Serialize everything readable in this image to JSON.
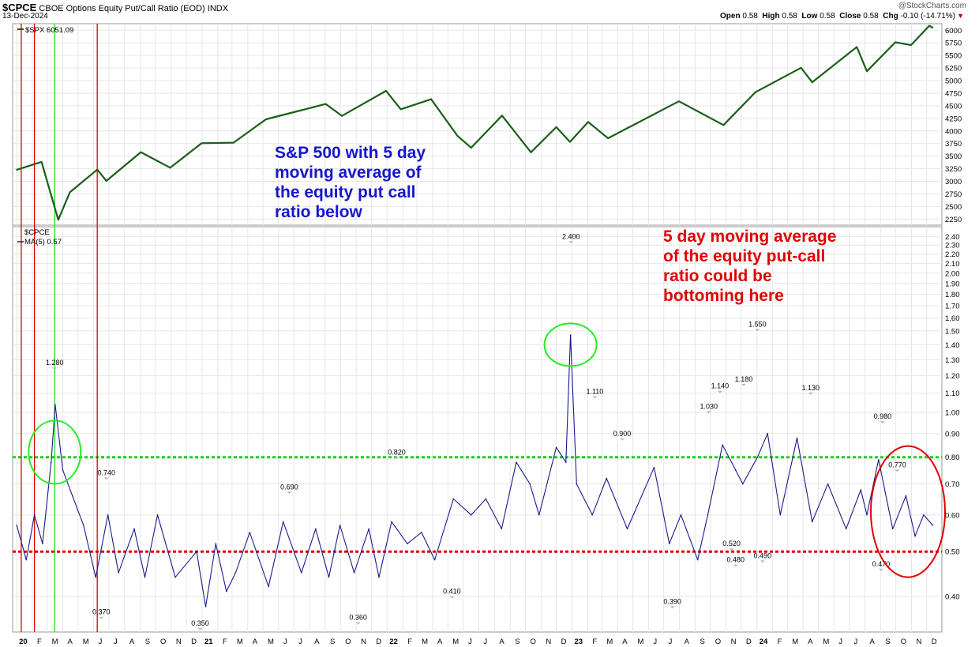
{
  "header": {
    "symbol": "$CPCE",
    "description": "CBOE Options Equity Put/Call Ratio (EOD)",
    "exchange": "INDX",
    "date": "13-Dec-2024",
    "open_label": "Open",
    "open": "0.58",
    "high_label": "High",
    "high": "0.58",
    "low_label": "Low",
    "low": "0.58",
    "close_label": "Close",
    "close": "0.58",
    "chg_label": "Chg",
    "chg": "-0.10 (-14.71%)",
    "watermark": "@StockCharts.com"
  },
  "annotations": {
    "blue_note": [
      "S&P 500 with 5 day",
      "moving average of",
      "the equity put call",
      "ratio below"
    ],
    "red_note": [
      "5 day moving average",
      "of the equity put-call",
      "ratio could be",
      "bottoming here"
    ]
  },
  "colors": {
    "spx_line": "#1a5e1a",
    "ma_line": "#1a1a8c",
    "red": "#e00000",
    "green": "#22dd22",
    "blue_text": "#1616cc",
    "grid": "#e6e6e6"
  },
  "chart_data": [
    {
      "type": "line",
      "legend": "$SPX 6051.09",
      "y_ticks": [
        2250,
        2500,
        2750,
        3000,
        3250,
        3500,
        3750,
        4000,
        4250,
        4500,
        4750,
        5000,
        5250,
        5500,
        5750,
        6000
      ],
      "ylim": [
        2130,
        6130
      ],
      "grid": true,
      "series": [
        {
          "name": "$SPX",
          "x": [
            "2020-01-01",
            "2020-02-19",
            "2020-03-23",
            "2020-04-15",
            "2020-06-08",
            "2020-06-26",
            "2020-09-02",
            "2020-10-30",
            "2020-12-31",
            "2021-03-04",
            "2021-05-07",
            "2021-09-02",
            "2021-10-04",
            "2021-12-30",
            "2022-01-28",
            "2022-03-29",
            "2022-05-20",
            "2022-06-16",
            "2022-08-16",
            "2022-10-12",
            "2022-12-01",
            "2022-12-28",
            "2023-02-02",
            "2023-03-13",
            "2023-07-31",
            "2023-10-27",
            "2023-12-29",
            "2024-03-28",
            "2024-04-19",
            "2024-07-16",
            "2024-08-05",
            "2024-09-30",
            "2024-10-31",
            "2024-12-06",
            "2024-12-13"
          ],
          "values": [
            3230,
            3386,
            2237,
            2783,
            3232,
            3009,
            3580,
            3270,
            3756,
            3768,
            4232,
            4537,
            4300,
            4796,
            4431,
            4631,
            3901,
            3667,
            4305,
            3577,
            4076,
            3783,
            4179,
            3855,
            4589,
            4117,
            4770,
            5254,
            4967,
            5667,
            5186,
            5762,
            5705,
            6090,
            6051
          ]
        }
      ]
    },
    {
      "type": "line",
      "legend": [
        "$CPCE",
        "MA(5) 0.57"
      ],
      "y_ticks": [
        0.4,
        0.5,
        0.6,
        0.7,
        0.8,
        0.9,
        1.0,
        1.1,
        1.2,
        1.3,
        1.4,
        1.5,
        1.6,
        1.7,
        1.8,
        1.9,
        2.0,
        2.1,
        2.2,
        2.3,
        2.4
      ],
      "scale": "log",
      "ylim": [
        0.335,
        2.52
      ],
      "grid": true,
      "reference_lines": [
        {
          "value": 0.8,
          "color": "#22cc22",
          "style": "dotted"
        },
        {
          "value": 0.5,
          "color": "#e00000",
          "style": "dotted"
        }
      ],
      "series": [
        {
          "name": "MA(5)",
          "x": [
            "2020-01-01",
            "2020-01-20",
            "2020-02-05",
            "2020-02-21",
            "2020-03-09",
            "2020-03-17",
            "2020-04-01",
            "2020-04-20",
            "2020-05-12",
            "2020-06-05",
            "2020-06-29",
            "2020-07-20",
            "2020-08-20",
            "2020-09-10",
            "2020-10-05",
            "2020-11-09",
            "2020-12-21",
            "2021-01-08",
            "2021-01-28",
            "2021-02-18",
            "2021-03-08",
            "2021-04-05",
            "2021-05-12",
            "2021-06-10",
            "2021-07-16",
            "2021-08-13",
            "2021-09-08",
            "2021-09-30",
            "2021-10-28",
            "2021-11-26",
            "2021-12-16",
            "2022-01-10",
            "2022-02-10",
            "2022-03-10",
            "2022-04-05",
            "2022-05-12",
            "2022-06-16",
            "2022-07-15",
            "2022-08-15",
            "2022-09-13",
            "2022-10-10",
            "2022-10-28",
            "2022-12-01",
            "2022-12-20",
            "2022-12-29",
            "2023-01-10",
            "2023-02-10",
            "2023-03-10",
            "2023-04-20",
            "2023-06-12",
            "2023-07-12",
            "2023-08-04",
            "2023-09-06",
            "2023-09-26",
            "2023-10-25",
            "2023-11-20",
            "2023-12-04",
            "2024-01-02",
            "2024-01-22",
            "2024-02-16",
            "2024-03-20",
            "2024-04-19",
            "2024-05-20",
            "2024-06-25",
            "2024-07-24",
            "2024-08-05",
            "2024-08-28",
            "2024-09-25",
            "2024-10-21",
            "2024-11-08",
            "2024-11-25",
            "2024-12-13"
          ],
          "values": [
            0.57,
            0.48,
            0.6,
            0.52,
            0.78,
            1.04,
            0.75,
            0.66,
            0.57,
            0.44,
            0.6,
            0.45,
            0.56,
            0.44,
            0.6,
            0.44,
            0.5,
            0.38,
            0.52,
            0.41,
            0.45,
            0.55,
            0.42,
            0.58,
            0.45,
            0.56,
            0.44,
            0.57,
            0.45,
            0.56,
            0.44,
            0.58,
            0.52,
            0.55,
            0.48,
            0.65,
            0.6,
            0.65,
            0.56,
            0.78,
            0.7,
            0.6,
            0.84,
            0.78,
            1.47,
            0.7,
            0.6,
            0.72,
            0.56,
            0.76,
            0.52,
            0.6,
            0.48,
            0.6,
            0.85,
            0.75,
            0.7,
            0.8,
            0.9,
            0.6,
            0.88,
            0.58,
            0.7,
            0.56,
            0.68,
            0.6,
            0.79,
            0.56,
            0.66,
            0.54,
            0.6,
            0.57
          ]
        }
      ],
      "data_labels": [
        {
          "text": "1.280",
          "x": "2020-03-16",
          "value": 1.28
        },
        {
          "text": "0.740",
          "x": "2020-06-26",
          "value": 0.74
        },
        {
          "text": "0.370",
          "x": "2020-06-16",
          "value": 0.37
        },
        {
          "text": "0.350",
          "x": "2020-12-28",
          "value": 0.35
        },
        {
          "text": "0.690",
          "x": "2021-06-22",
          "value": 0.69
        },
        {
          "text": "0.360",
          "x": "2021-11-05",
          "value": 0.36
        },
        {
          "text": "0.820",
          "x": "2022-01-20",
          "value": 0.82
        },
        {
          "text": "0.410",
          "x": "2022-05-09",
          "value": 0.41
        },
        {
          "text": "2.400",
          "x": "2022-12-30",
          "value": 2.4
        },
        {
          "text": "1.110",
          "x": "2023-02-15",
          "value": 1.11
        },
        {
          "text": "0.900",
          "x": "2023-04-10",
          "value": 0.9
        },
        {
          "text": "0.390",
          "x": "2023-07-18",
          "value": 0.39
        },
        {
          "text": "1.030",
          "x": "2023-09-28",
          "value": 1.03
        },
        {
          "text": "1.140",
          "x": "2023-10-20",
          "value": 1.14
        },
        {
          "text": "0.520",
          "x": "2023-11-12",
          "value": 0.52
        },
        {
          "text": "0.480",
          "x": "2023-11-20",
          "value": 0.48
        },
        {
          "text": "1.180",
          "x": "2023-12-06",
          "value": 1.18
        },
        {
          "text": "0.490",
          "x": "2024-01-12",
          "value": 0.49
        },
        {
          "text": "1.550",
          "x": "2024-01-02",
          "value": 1.55
        },
        {
          "text": "1.130",
          "x": "2024-04-16",
          "value": 1.13
        },
        {
          "text": "0.470",
          "x": "2024-09-02",
          "value": 0.47
        },
        {
          "text": "0.980",
          "x": "2024-09-05",
          "value": 0.98
        },
        {
          "text": "0.770",
          "x": "2024-10-04",
          "value": 0.77
        }
      ]
    }
  ],
  "x_axis": {
    "x_range": [
      "2019-12-24",
      "2024-12-31"
    ],
    "tick_labels": [
      {
        "text": "20",
        "x": "2020-01-01",
        "year": true
      },
      {
        "text": "F",
        "x": "2020-02-01"
      },
      {
        "text": "M",
        "x": "2020-03-01"
      },
      {
        "text": "A",
        "x": "2020-04-01"
      },
      {
        "text": "M",
        "x": "2020-05-01"
      },
      {
        "text": "J",
        "x": "2020-06-01"
      },
      {
        "text": "J",
        "x": "2020-07-01"
      },
      {
        "text": "A",
        "x": "2020-08-01"
      },
      {
        "text": "S",
        "x": "2020-09-01"
      },
      {
        "text": "O",
        "x": "2020-10-01"
      },
      {
        "text": "N",
        "x": "2020-11-01"
      },
      {
        "text": "D",
        "x": "2020-12-01"
      },
      {
        "text": "21",
        "x": "2021-01-01",
        "year": true
      },
      {
        "text": "F",
        "x": "2021-02-01"
      },
      {
        "text": "M",
        "x": "2021-03-01"
      },
      {
        "text": "A",
        "x": "2021-04-01"
      },
      {
        "text": "M",
        "x": "2021-05-01"
      },
      {
        "text": "J",
        "x": "2021-06-01"
      },
      {
        "text": "J",
        "x": "2021-07-01"
      },
      {
        "text": "A",
        "x": "2021-08-01"
      },
      {
        "text": "S",
        "x": "2021-09-01"
      },
      {
        "text": "O",
        "x": "2021-10-01"
      },
      {
        "text": "N",
        "x": "2021-11-01"
      },
      {
        "text": "D",
        "x": "2021-12-01"
      },
      {
        "text": "22",
        "x": "2022-01-01",
        "year": true
      },
      {
        "text": "F",
        "x": "2022-02-01"
      },
      {
        "text": "M",
        "x": "2022-03-01"
      },
      {
        "text": "A",
        "x": "2022-04-01"
      },
      {
        "text": "M",
        "x": "2022-05-01"
      },
      {
        "text": "J",
        "x": "2022-06-01"
      },
      {
        "text": "J",
        "x": "2022-07-01"
      },
      {
        "text": "A",
        "x": "2022-08-01"
      },
      {
        "text": "S",
        "x": "2022-09-01"
      },
      {
        "text": "O",
        "x": "2022-10-01"
      },
      {
        "text": "N",
        "x": "2022-11-01"
      },
      {
        "text": "D",
        "x": "2022-12-01"
      },
      {
        "text": "23",
        "x": "2023-01-01",
        "year": true
      },
      {
        "text": "F",
        "x": "2023-02-01"
      },
      {
        "text": "M",
        "x": "2023-03-01"
      },
      {
        "text": "A",
        "x": "2023-04-01"
      },
      {
        "text": "M",
        "x": "2023-05-01"
      },
      {
        "text": "J",
        "x": "2023-06-01"
      },
      {
        "text": "J",
        "x": "2023-07-01"
      },
      {
        "text": "A",
        "x": "2023-08-01"
      },
      {
        "text": "S",
        "x": "2023-09-01"
      },
      {
        "text": "O",
        "x": "2023-10-01"
      },
      {
        "text": "N",
        "x": "2023-11-01"
      },
      {
        "text": "D",
        "x": "2023-12-01"
      },
      {
        "text": "24",
        "x": "2024-01-01",
        "year": true
      },
      {
        "text": "F",
        "x": "2024-02-01"
      },
      {
        "text": "M",
        "x": "2024-03-01"
      },
      {
        "text": "A",
        "x": "2024-04-01"
      },
      {
        "text": "M",
        "x": "2024-05-01"
      },
      {
        "text": "J",
        "x": "2024-06-01"
      },
      {
        "text": "J",
        "x": "2024-07-01"
      },
      {
        "text": "A",
        "x": "2024-08-01"
      },
      {
        "text": "S",
        "x": "2024-09-01"
      },
      {
        "text": "O",
        "x": "2024-10-01"
      },
      {
        "text": "N",
        "x": "2024-11-01"
      },
      {
        "text": "D",
        "x": "2024-12-01"
      }
    ],
    "vertical_markers": [
      {
        "x": "2020-01-10",
        "color": "#e00000"
      },
      {
        "x": "2020-02-05",
        "color": "#e00000"
      },
      {
        "x": "2020-03-16",
        "color": "#22dd22"
      },
      {
        "x": "2020-06-08",
        "color": "#e00000"
      }
    ]
  }
}
